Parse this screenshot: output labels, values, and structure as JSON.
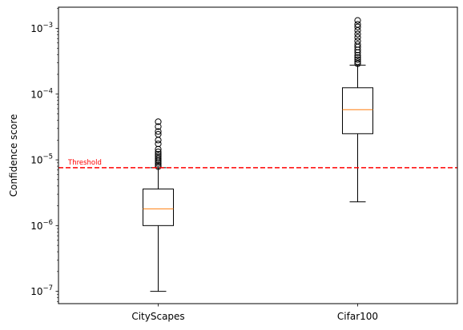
{
  "chart_data": {
    "type": "boxplot",
    "title": "",
    "xlabel": "",
    "ylabel": "Confidence score",
    "yscale": "log",
    "ylim": [
      6.5e-08,
      0.0021
    ],
    "yticks": [
      {
        "value": 1e-07,
        "mantissa": "10",
        "exponent": "−7"
      },
      {
        "value": 1e-06,
        "mantissa": "10",
        "exponent": "−6"
      },
      {
        "value": 1e-05,
        "mantissa": "10",
        "exponent": "−5"
      },
      {
        "value": 0.0001,
        "mantissa": "10",
        "exponent": "−4"
      },
      {
        "value": 0.001,
        "mantissa": "10",
        "exponent": "−3"
      }
    ],
    "categories": [
      "CityScapes",
      "Cifar100"
    ],
    "boxes": [
      {
        "name": "CityScapes",
        "whisker_low": 1e-07,
        "q1": 1e-06,
        "median": 1.8e-06,
        "q3": 3.6e-06,
        "whisker_high": 7.6e-06,
        "outliers": [
          7.9e-06,
          8.3e-06,
          8.8e-06,
          9.3e-06,
          9.9e-06,
          1.06e-05,
          1.14e-05,
          1.22e-05,
          1.32e-05,
          1.45e-05,
          1.75e-05,
          2e-05,
          2.45e-05,
          2.7e-05,
          3.2e-05,
          3.8e-05
        ]
      },
      {
        "name": "Cifar100",
        "whisker_low": 2.3e-06,
        "q1": 2.5e-05,
        "median": 5.8e-05,
        "q3": 0.000125,
        "whisker_high": 0.000275,
        "outliers": [
          0.00029,
          0.00031,
          0.000335,
          0.00036,
          0.00039,
          0.00043,
          0.00047,
          0.00052,
          0.00057,
          0.00064,
          0.00073,
          0.00082,
          0.00093,
          0.00105,
          0.00115,
          0.00132
        ]
      }
    ],
    "threshold": {
      "value": 7.6e-06,
      "label": "Threshold",
      "color": "#ff0000"
    },
    "colors": {
      "box": "#000000",
      "median": "#ff7f0e",
      "threshold": "#ff0000"
    },
    "grid": false,
    "legend": "none"
  }
}
